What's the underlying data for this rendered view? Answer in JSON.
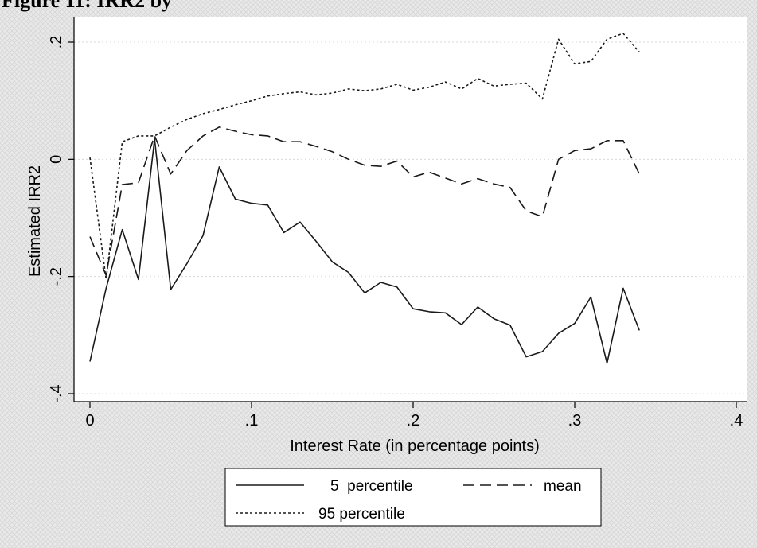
{
  "figure_title": "Figure 11: IRR2 by",
  "colors": {
    "background": "#e9e9e9",
    "plot_area": "#ffffff",
    "gridline": "#d9d9d9",
    "line": "#1a1a1a"
  },
  "chart_data": {
    "type": "line",
    "title": "",
    "xlabel": "Interest Rate (in percentage points)",
    "ylabel": "Estimated IRR2",
    "xlim": [
      0,
      0.4
    ],
    "ylim": [
      -0.4,
      0.2
    ],
    "x_ticks": [
      0,
      0.1,
      0.2,
      0.3,
      0.4
    ],
    "x_tick_labels": [
      "0",
      ".1",
      ".2",
      ".3",
      ".4"
    ],
    "y_ticks": [
      -0.4,
      -0.2,
      0,
      0.2
    ],
    "y_tick_labels": [
      "-.4",
      "-.2",
      "0",
      ".2"
    ],
    "grid": true,
    "legend_position": "bottom",
    "x": [
      0,
      0.01,
      0.02,
      0.03,
      0.04,
      0.05,
      0.06,
      0.07,
      0.08,
      0.09,
      0.1,
      0.11,
      0.12,
      0.13,
      0.14,
      0.15,
      0.16,
      0.17,
      0.18,
      0.19,
      0.2,
      0.21,
      0.22,
      0.23,
      0.24,
      0.25,
      0.26,
      0.27,
      0.28,
      0.29,
      0.3,
      0.31,
      0.32,
      0.33,
      0.34
    ],
    "series": [
      {
        "name": "5  percentile",
        "dash": "solid",
        "values": [
          -0.345,
          -0.22,
          -0.12,
          -0.205,
          0.035,
          -0.222,
          -0.178,
          -0.13,
          -0.013,
          -0.068,
          -0.075,
          -0.078,
          -0.125,
          -0.107,
          -0.14,
          -0.175,
          -0.193,
          -0.228,
          -0.21,
          -0.218,
          -0.255,
          -0.26,
          -0.262,
          -0.282,
          -0.252,
          -0.272,
          -0.283,
          -0.337,
          -0.328,
          -0.297,
          -0.28,
          -0.235,
          -0.348,
          -0.22,
          -0.292
        ]
      },
      {
        "name": "mean",
        "dash": "dashed",
        "values": [
          -0.132,
          -0.198,
          -0.043,
          -0.04,
          0.04,
          -0.025,
          0.015,
          0.04,
          0.055,
          0.048,
          0.042,
          0.04,
          0.03,
          0.03,
          0.022,
          0.013,
          0.0,
          -0.01,
          -0.012,
          -0.003,
          -0.03,
          -0.022,
          -0.032,
          -0.042,
          -0.033,
          -0.042,
          -0.048,
          -0.088,
          -0.098,
          0.0,
          0.015,
          0.018,
          0.032,
          0.032,
          -0.025
        ]
      },
      {
        "name": "95 percentile",
        "dash": "dotted",
        "values": [
          0.003,
          -0.205,
          0.03,
          0.04,
          0.04,
          0.055,
          0.068,
          0.078,
          0.085,
          0.093,
          0.1,
          0.108,
          0.112,
          0.115,
          0.11,
          0.113,
          0.12,
          0.117,
          0.12,
          0.128,
          0.118,
          0.123,
          0.132,
          0.12,
          0.138,
          0.125,
          0.128,
          0.13,
          0.103,
          0.205,
          0.163,
          0.167,
          0.205,
          0.215,
          0.183
        ]
      }
    ]
  }
}
